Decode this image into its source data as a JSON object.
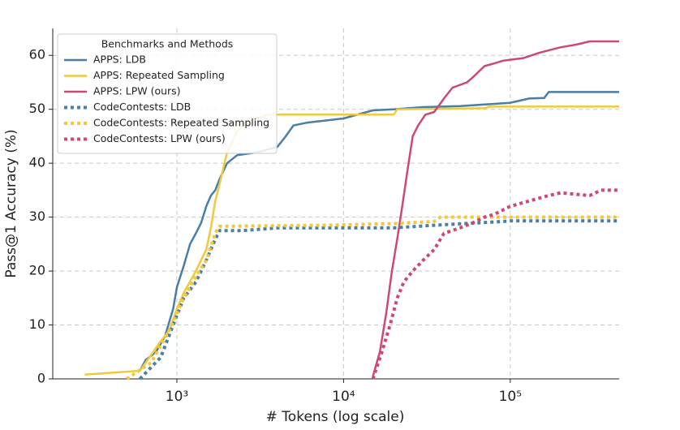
{
  "chart_data": {
    "type": "line",
    "x_label": "# Tokens (log scale)",
    "y_label": "Pass@1 Accuracy (%)",
    "xscale": "log",
    "xlim": [
      180,
      450000
    ],
    "xticks": [
      {
        "value": 1000,
        "label": "10³"
      },
      {
        "value": 10000,
        "label": "10⁴"
      },
      {
        "value": 100000,
        "label": "10⁵"
      }
    ],
    "ylim": [
      0,
      65
    ],
    "yticks": [
      0,
      10,
      20,
      30,
      40,
      50,
      60
    ],
    "grid": true,
    "legend": "upper left",
    "legend_title": "Benchmarks and Methods",
    "series": [
      {
        "name": "APPS: LDB",
        "color": "#4a7ea6",
        "linestyle": "solid",
        "x": [
          600,
          650,
          750,
          850,
          950,
          1000,
          1100,
          1200,
          1300,
          1400,
          1500,
          1600,
          1700,
          1800,
          2000,
          2300,
          3000,
          4000,
          4500,
          5000,
          6000,
          10000,
          15000,
          20000,
          30000,
          50000,
          100000,
          130000,
          160000,
          170000,
          450000
        ],
        "values": [
          1.5,
          3.5,
          5,
          8,
          13,
          17,
          21,
          25,
          27,
          29,
          32,
          34,
          35,
          37,
          40,
          41.5,
          42,
          43,
          45,
          47,
          47.5,
          48.3,
          49.8,
          50,
          50.4,
          50.6,
          51.2,
          52,
          52.1,
          53.2,
          53.2
        ]
      },
      {
        "name": "APPS: Repeated Sampling",
        "color": "#f0c93e",
        "linestyle": "solid",
        "x": [
          280,
          600,
          650,
          800,
          900,
          1000,
          1100,
          1300,
          1500,
          1600,
          1700,
          1800,
          2000,
          2300,
          2800,
          3500,
          20000,
          21000,
          70000,
          75000,
          450000
        ],
        "values": [
          0.8,
          1.5,
          3,
          7,
          9,
          13,
          16,
          20,
          24,
          28,
          33,
          36,
          42,
          46,
          48,
          49,
          49,
          50,
          50.2,
          50.5,
          50.5
        ]
      },
      {
        "name": "APPS: LPW (ours)",
        "color": "#cc4a72",
        "linestyle": "solid",
        "x": [
          15000,
          16500,
          18000,
          19500,
          21000,
          22500,
          24000,
          26000,
          28000,
          31000,
          35000,
          40000,
          45000,
          55000,
          60000,
          70000,
          80000,
          90000,
          120000,
          150000,
          200000,
          250000,
          300000,
          450000
        ],
        "values": [
          0.5,
          5,
          12,
          20,
          26,
          32,
          38,
          45,
          47,
          49,
          49.5,
          52,
          54,
          55,
          56,
          58,
          58.5,
          59,
          59.5,
          60.5,
          61.5,
          62,
          62.6,
          62.6
        ]
      },
      {
        "name": "CodeContests: LDB",
        "color": "#4a7ea6",
        "linestyle": "dotted",
        "x": [
          600,
          800,
          950,
          1100,
          1300,
          1500,
          1650,
          1800,
          2500,
          4000,
          20000,
          35000,
          70000,
          100000,
          450000
        ],
        "values": [
          0,
          4,
          10,
          15,
          18,
          22,
          25,
          27.5,
          27.5,
          28,
          28,
          28.5,
          29,
          29.3,
          29.3
        ]
      },
      {
        "name": "CodeContests: Repeated Sampling",
        "color": "#f0c93e",
        "linestyle": "dotted",
        "x": [
          500,
          700,
          900,
          1100,
          1300,
          1500,
          1700,
          1800,
          8000,
          20000,
          35000,
          38000,
          450000
        ],
        "values": [
          0,
          3,
          9,
          15,
          19,
          22,
          27,
          28.3,
          28.5,
          28.8,
          29.2,
          30,
          30
        ]
      },
      {
        "name": "CodeContests: LPW (ours)",
        "color": "#cc4a72",
        "linestyle": "dotted",
        "x": [
          15000,
          17000,
          19000,
          21000,
          23000,
          26000,
          30000,
          35000,
          40000,
          50000,
          60000,
          70000,
          80000,
          100000,
          130000,
          170000,
          200000,
          300000,
          350000,
          450000
        ],
        "values": [
          0,
          5,
          10,
          15,
          18,
          20,
          22,
          24,
          27,
          28,
          29,
          30,
          30.5,
          32,
          33,
          34,
          34.5,
          34,
          35,
          35
        ]
      }
    ]
  }
}
